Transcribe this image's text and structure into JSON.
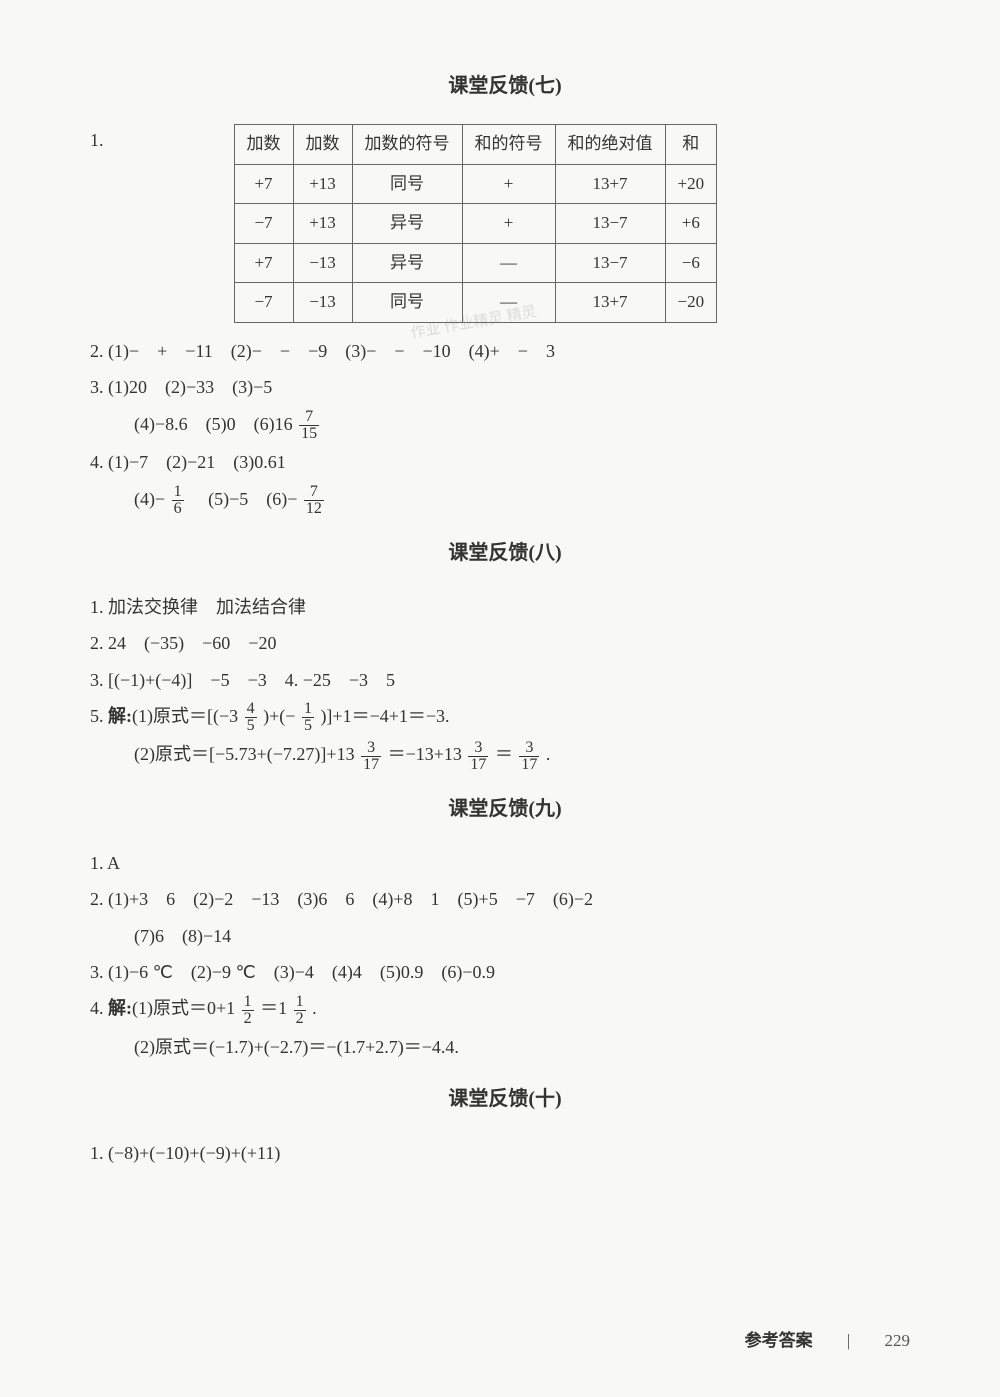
{
  "sections": {
    "s7": {
      "title": "课堂反馈(七)"
    },
    "s8": {
      "title": "课堂反馈(八)"
    },
    "s9": {
      "title": "课堂反馈(九)"
    },
    "s10": {
      "title": "课堂反馈(十)"
    }
  },
  "table7": {
    "headers": [
      "加数",
      "加数",
      "加数的符号",
      "和的符号",
      "和的绝对值",
      "和"
    ],
    "rows": [
      [
        "+7",
        "+13",
        "同号",
        "+",
        "13+7",
        "+20"
      ],
      [
        "−7",
        "+13",
        "异号",
        "+",
        "13−7",
        "+6"
      ],
      [
        "+7",
        "−13",
        "异号",
        "—",
        "13−7",
        "−6"
      ],
      [
        "−7",
        "−13",
        "同号",
        "—",
        "13+7",
        "−20"
      ]
    ]
  },
  "s7q1_label": "1.",
  "s7q2": "2.  (1)−　+　−11　(2)−　−　−9　(3)−　−　−10　(4)+　−　3",
  "s7q3a": "3.  (1)20　(2)−33　(3)−5",
  "s7q3b_pre": "(4)−8.6　(5)0　(6)16",
  "s7q3b_frac": {
    "num": "7",
    "den": "15"
  },
  "s7q4a": "4.  (1)−7　(2)−21　(3)0.61",
  "s7q4b_pre": "(4)−",
  "s7q4b_f1": {
    "num": "1",
    "den": "6"
  },
  "s7q4b_mid": "　(5)−5　(6)−",
  "s7q4b_f2": {
    "num": "7",
    "den": "12"
  },
  "s8q1": "1.  加法交换律　加法结合律",
  "s8q2": "2.  24　(−35)　−60　−20",
  "s8q3": "3.  [(−1)+(−4)]　−5　−3　4.  −25　−3　5",
  "s8q5a_pre": "5.  ",
  "s8q5a_bold": "解:",
  "s8q5a_mid1": "(1)原式＝[(−3",
  "s8q5a_f1": {
    "num": "4",
    "den": "5"
  },
  "s8q5a_mid2": ")+(−",
  "s8q5a_f2": {
    "num": "1",
    "den": "5"
  },
  "s8q5a_mid3": ")]+1＝−4+1＝−3.",
  "s8q5b_pre": "(2)原式＝[−5.73+(−7.27)]+13",
  "s8q5b_f1": {
    "num": "3",
    "den": "17"
  },
  "s8q5b_mid1": "＝−13+13",
  "s8q5b_f2": {
    "num": "3",
    "den": "17"
  },
  "s8q5b_mid2": "＝",
  "s8q5b_f3": {
    "num": "3",
    "den": "17"
  },
  "s8q5b_end": ".",
  "s9q1": "1.  A",
  "s9q2a": "2.  (1)+3　6　(2)−2　−13　(3)6　6　(4)+8　1　(5)+5　−7　(6)−2",
  "s9q2b": "(7)6　(8)−14",
  "s9q3": "3.  (1)−6 ℃　(2)−9 ℃　(3)−4　(4)4　(5)0.9　(6)−0.9",
  "s9q4a_pre": "4.  ",
  "s9q4a_bold": "解:",
  "s9q4a_mid1": "(1)原式＝0+1",
  "s9q4a_f1": {
    "num": "1",
    "den": "2"
  },
  "s9q4a_mid2": "＝1",
  "s9q4a_f2": {
    "num": "1",
    "den": "2"
  },
  "s9q4a_end": ".",
  "s9q4b": "(2)原式＝(−1.7)+(−2.7)＝−(1.7+2.7)＝−4.4.",
  "s10q1": "1.  (−8)+(−10)+(−9)+(+11)",
  "footer": {
    "label": "参考答案",
    "sep": "|",
    "page": "229"
  },
  "watermark": "作业 作业精灵 精灵"
}
